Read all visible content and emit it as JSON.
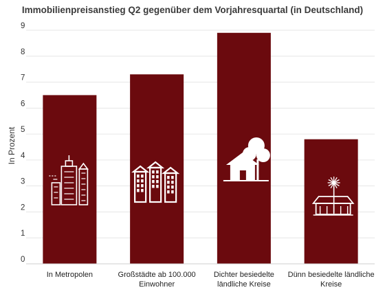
{
  "chart_data": {
    "type": "bar",
    "title": "Immobilienpreisanstieg Q2 gegenüber dem Vorjahresquartal (in Deutschland)",
    "xlabel": "",
    "ylabel": "In Prozent",
    "categories": [
      [
        "In Metropolen"
      ],
      [
        "Großstädte ab 100.000",
        "Einwohner"
      ],
      [
        "Dichter besiedelte",
        "ländliche Kreise"
      ],
      [
        "Dünn besiedelte ländliche",
        "Kreise"
      ]
    ],
    "values": [
      6.5,
      7.3,
      8.9,
      4.8
    ],
    "ylim": [
      0,
      9
    ],
    "yticks": [
      0,
      1,
      2,
      3,
      4,
      5,
      6,
      7,
      8,
      9
    ],
    "grid": true,
    "bar_color": "#6b0a0e",
    "icons": [
      "skyscrapers-icon",
      "city-buildings-icon",
      "house-with-trees-icon",
      "farmhouse-windmill-icon"
    ]
  }
}
